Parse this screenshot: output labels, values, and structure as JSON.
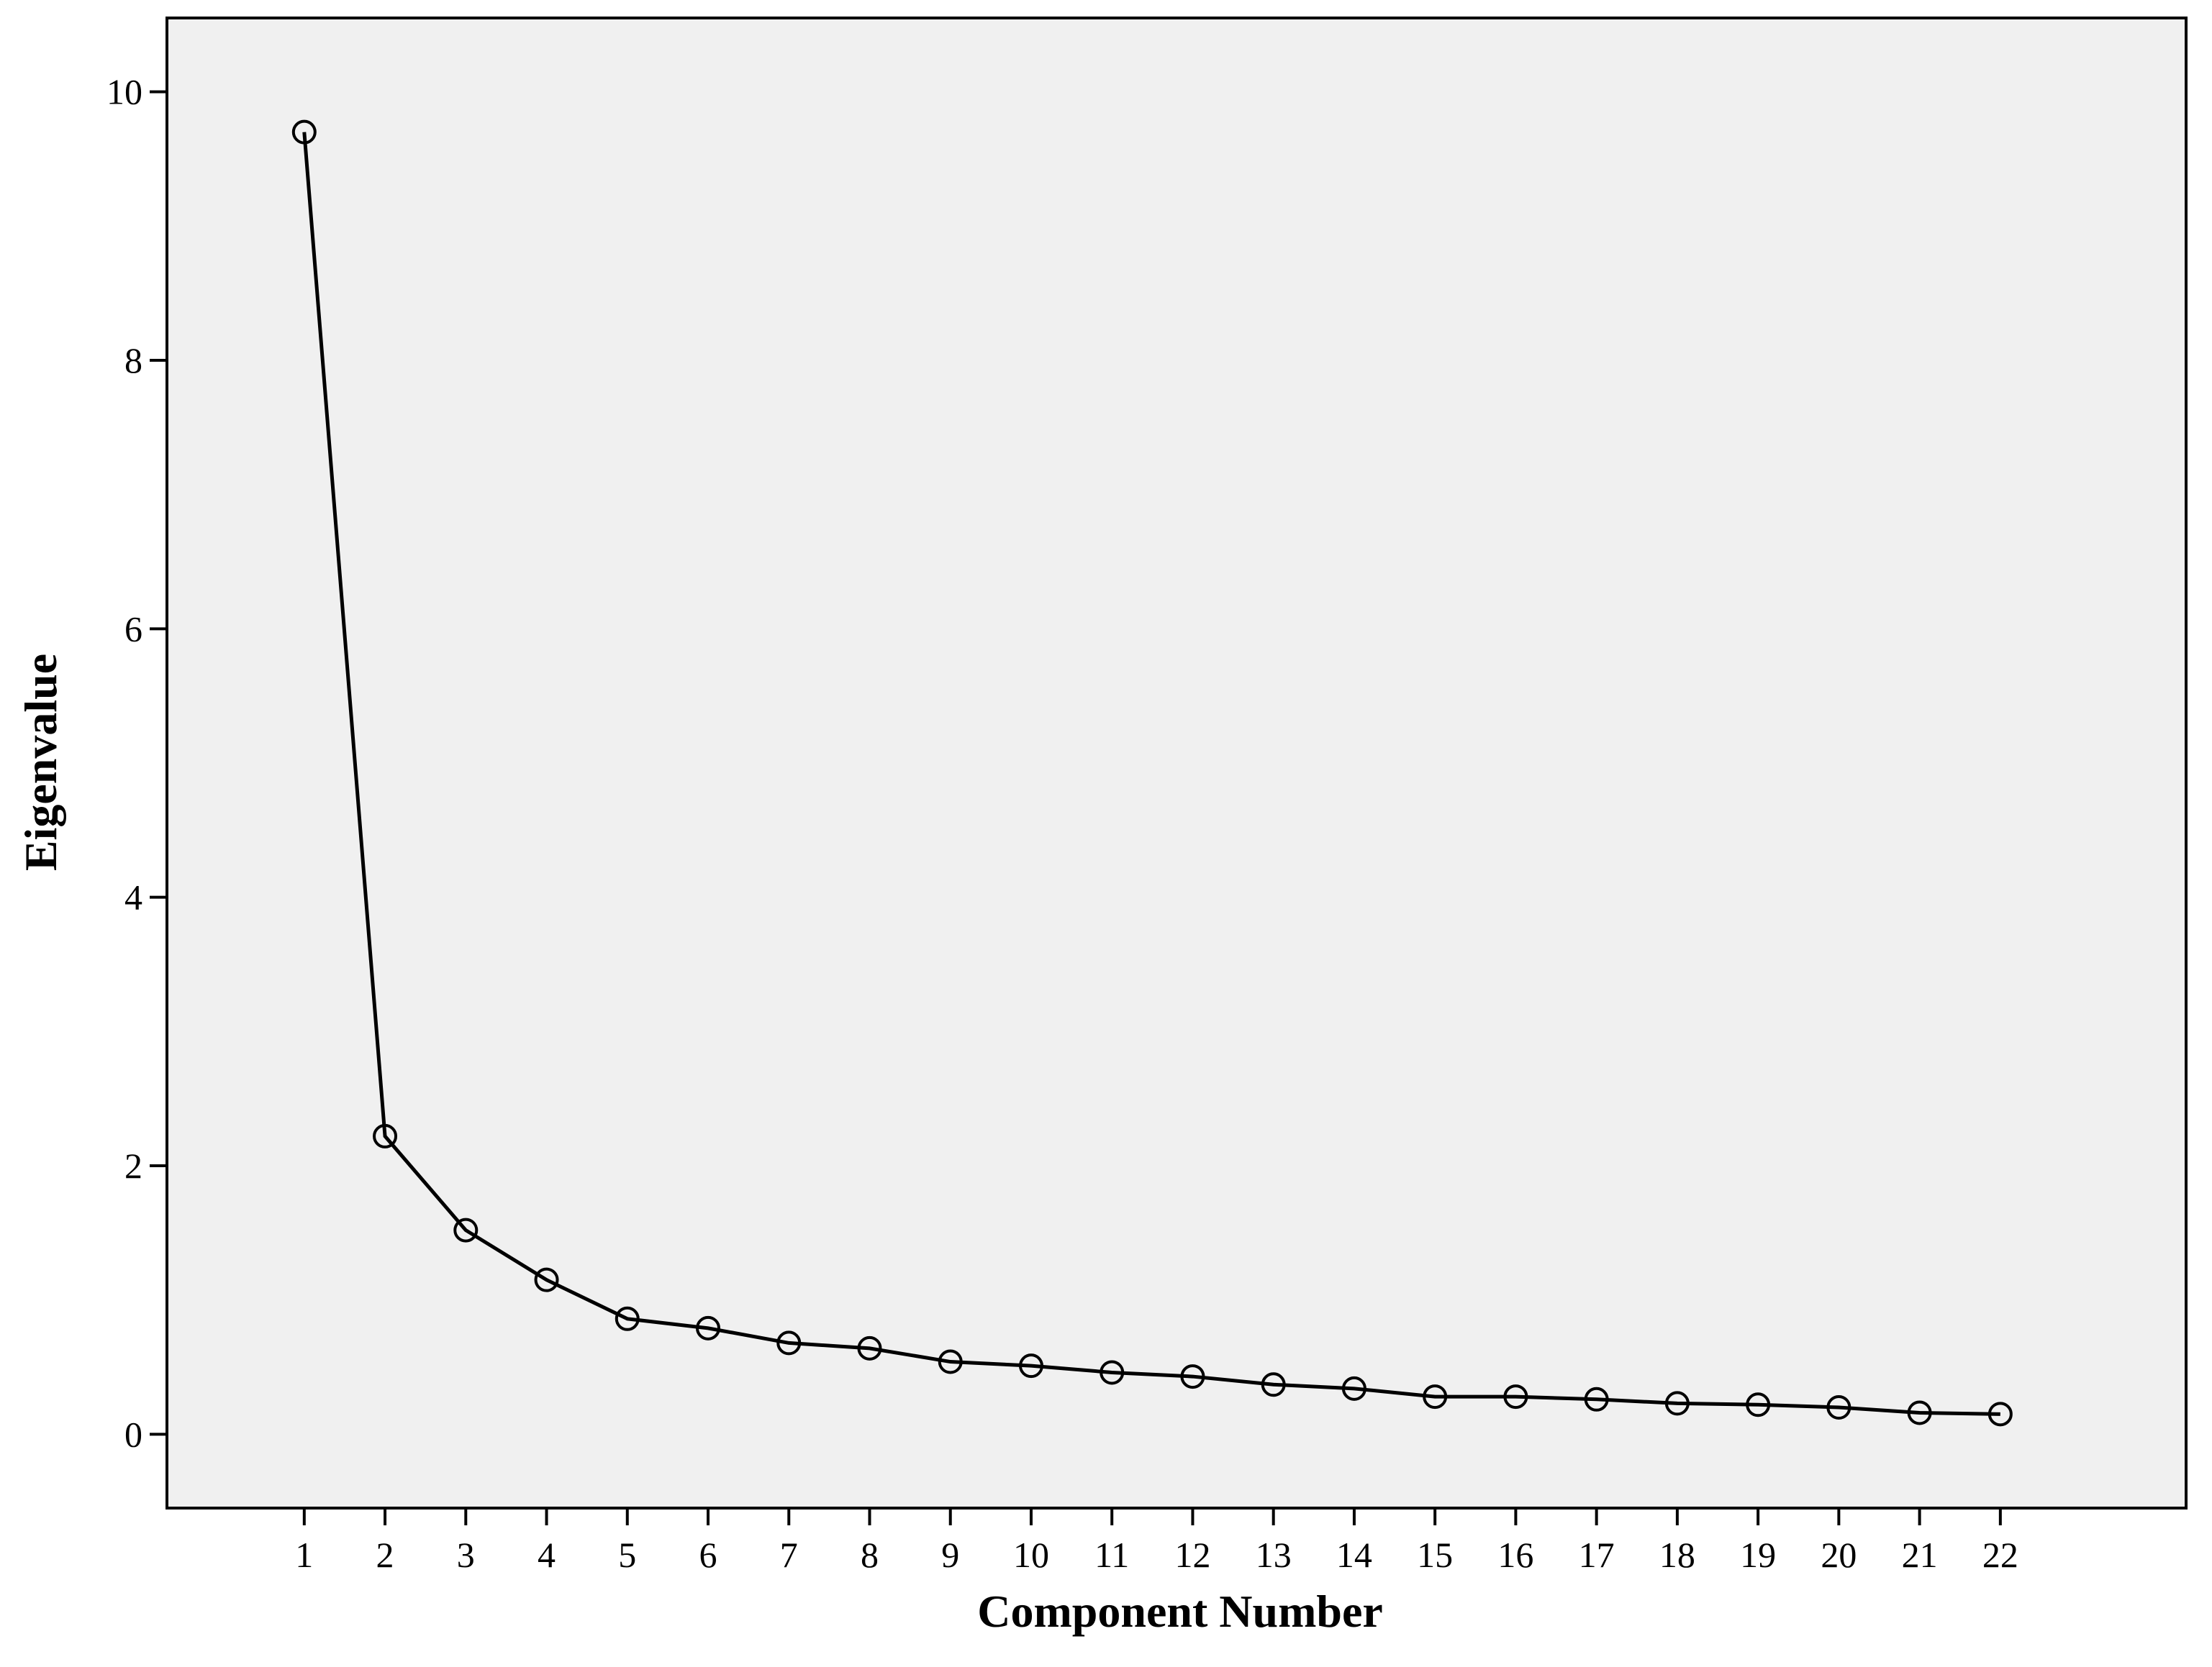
{
  "chart_data": {
    "type": "line",
    "xlabel": "Component Number",
    "ylabel": "Eigenvalue",
    "x": [
      1,
      2,
      3,
      4,
      5,
      6,
      7,
      8,
      9,
      10,
      11,
      12,
      13,
      14,
      15,
      16,
      17,
      18,
      19,
      20,
      21,
      22
    ],
    "x_tick_labels": [
      "1",
      "2",
      "3",
      "4",
      "5",
      "6",
      "7",
      "8",
      "9",
      "10",
      "11",
      "12",
      "13",
      "14",
      "15",
      "16",
      "17",
      "18",
      "19",
      "20",
      "21",
      "22"
    ],
    "y_ticks": [
      0,
      2,
      4,
      6,
      8,
      10
    ],
    "y_tick_labels": [
      "0",
      "2",
      "4",
      "6",
      "8",
      "10"
    ],
    "xlim": [
      -0.7,
      24.3
    ],
    "ylim": [
      -0.55,
      10.55
    ],
    "series": [
      {
        "values": [
          9.7,
          2.22,
          1.52,
          1.15,
          0.86,
          0.79,
          0.68,
          0.64,
          0.54,
          0.51,
          0.46,
          0.43,
          0.37,
          0.34,
          0.28,
          0.28,
          0.26,
          0.23,
          0.22,
          0.2,
          0.16,
          0.15
        ],
        "marker": "circle-open",
        "color": "#000000"
      }
    ],
    "grid": false,
    "background_color": "#f0f0f0",
    "legend": "none"
  }
}
